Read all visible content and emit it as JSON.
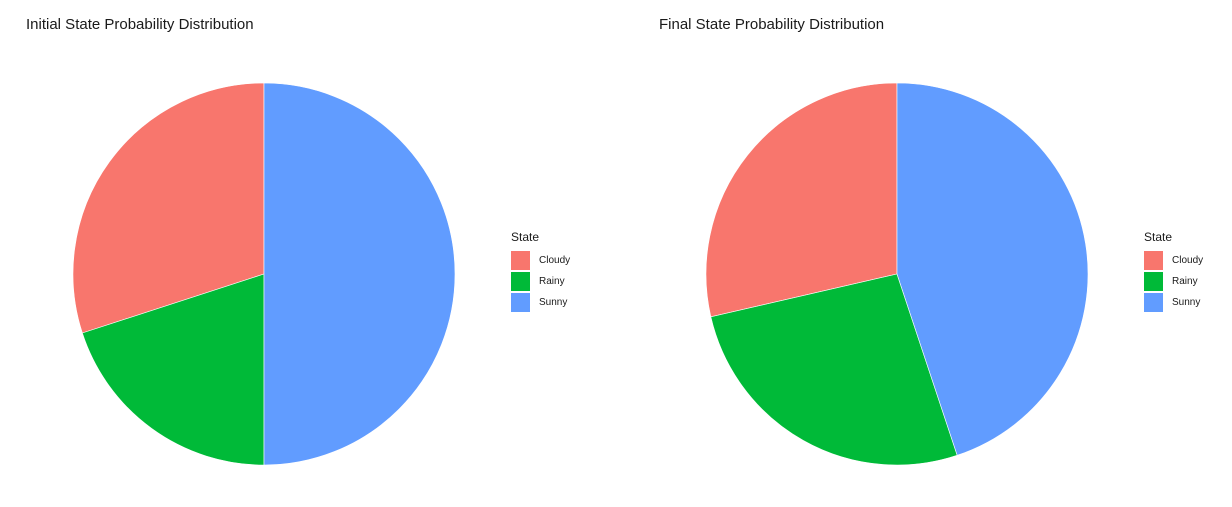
{
  "chart_data": [
    {
      "type": "pie",
      "title": "Initial State Probability Distribution",
      "legend_title": "State",
      "legend_position": "right",
      "categories": [
        "Cloudy",
        "Rainy",
        "Sunny"
      ],
      "values": [
        0.3,
        0.2,
        0.5
      ]
    },
    {
      "type": "pie",
      "title": "Final State Probability Distribution",
      "legend_title": "State",
      "legend_position": "right",
      "categories": [
        "Cloudy",
        "Rainy",
        "Sunny"
      ],
      "values": [
        0.286,
        0.265,
        0.449
      ]
    }
  ],
  "colors": {
    "Cloudy": "#F8766D",
    "Rainy": "#00BA38",
    "Sunny": "#619CFF"
  }
}
